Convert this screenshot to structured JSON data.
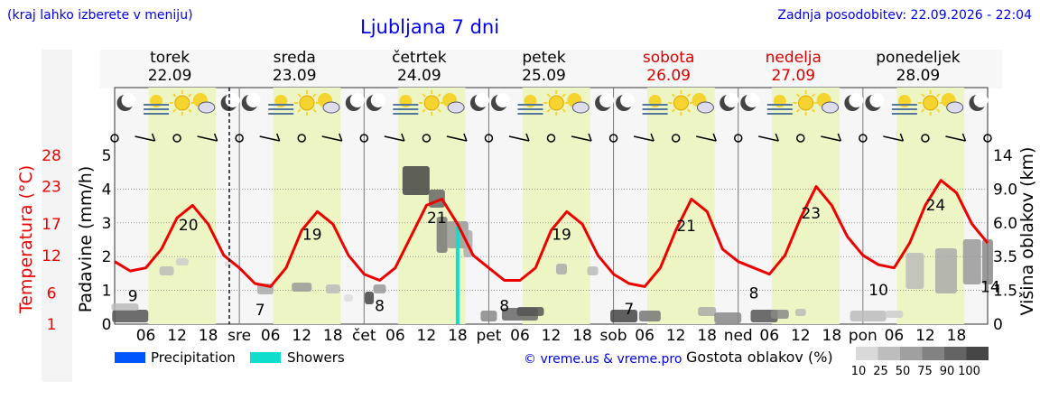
{
  "header": {
    "hint": "(kraj lahko izberete v meniju)",
    "title": "Ljubljana 7 dni",
    "updated": "Zadnja posodobitev: 22.09.2026 - 22:04"
  },
  "days": [
    {
      "name": "torek",
      "date": "22.09",
      "weekend": false,
      "short": "sre"
    },
    {
      "name": "sreda",
      "date": "23.09",
      "weekend": false,
      "short": "čet"
    },
    {
      "name": "četrtek",
      "date": "24.09",
      "weekend": false,
      "short": "pet"
    },
    {
      "name": "petek",
      "date": "25.09",
      "weekend": false,
      "short": "sob"
    },
    {
      "name": "sobota",
      "date": "26.09",
      "weekend": true,
      "short": "ned"
    },
    {
      "name": "nedelja",
      "date": "27.09",
      "weekend": true,
      "short": "pon"
    },
    {
      "name": "ponedeljek",
      "date": "28.09",
      "weekend": false,
      "short": ""
    }
  ],
  "hour_ticks": [
    "06",
    "12",
    "18"
  ],
  "axes": {
    "left_temp_label": "Temperatura (°C)",
    "left_temp_ticks": [
      "28",
      "23",
      "17",
      "12",
      "6",
      "1"
    ],
    "left_precip_label": "Padavine (mm/h)",
    "left_precip_ticks": [
      "5",
      "4",
      "3",
      "2",
      "1",
      "0"
    ],
    "right_label": "Višina oblakov (km)",
    "right_ticks": [
      "14",
      "9.0",
      "6.0",
      "3.5",
      "1.5",
      "0"
    ]
  },
  "temp_labels": [
    {
      "hour": 3.5,
      "text": "9"
    },
    {
      "hour": 14.2,
      "text": "20"
    },
    {
      "hour": 28,
      "text": "7"
    },
    {
      "hour": 38,
      "text": "19"
    },
    {
      "hour": 51,
      "text": "8"
    },
    {
      "hour": 62,
      "text": "21"
    },
    {
      "hour": 75,
      "text": "8"
    },
    {
      "hour": 86,
      "text": "19"
    },
    {
      "hour": 99,
      "text": "7"
    },
    {
      "hour": 110,
      "text": "21"
    },
    {
      "hour": 123,
      "text": "8"
    },
    {
      "hour": 134,
      "text": "23"
    },
    {
      "hour": 147,
      "text": "10"
    },
    {
      "hour": 158,
      "text": "24"
    },
    {
      "hour": 168.5,
      "text": "14"
    }
  ],
  "legend": {
    "precip": "Precipitation",
    "showers": "Showers",
    "credit": "© vreme.us & vreme.pro",
    "cloud_label": "Gostota oblakov (%)",
    "scale": [
      "10",
      "25",
      "50",
      "75",
      "90",
      "100"
    ]
  },
  "colors": {
    "temperature": "#ee0000",
    "precipitation": "#0055ff",
    "showers": "#11ddcc",
    "daytime": "#eef5c4",
    "weekend": "#dd0000"
  },
  "chart_data": {
    "type": "line",
    "title": "Ljubljana 7 dni",
    "x_unit": "hours since 22.09 00:00",
    "ylabel": "Temperatura (°C)",
    "ylim": [
      1,
      28
    ],
    "series": [
      {
        "name": "Temperatura (°C)",
        "x": [
          0,
          3,
          6,
          9,
          12,
          15,
          18,
          21,
          24,
          27,
          30,
          33,
          36,
          39,
          42,
          45,
          48,
          51,
          54,
          57,
          60,
          63,
          66,
          69,
          72,
          75,
          78,
          81,
          84,
          87,
          90,
          93,
          96,
          99,
          102,
          105,
          108,
          111,
          114,
          117,
          120,
          123,
          126,
          129,
          132,
          135,
          138,
          141,
          144,
          147,
          150,
          153,
          156,
          159,
          162,
          165,
          168
        ],
        "values": [
          11,
          9.5,
          10,
          13,
          18,
          20,
          17,
          12,
          10,
          7.5,
          7,
          10,
          16,
          19,
          17,
          12,
          9,
          8,
          10,
          15,
          20,
          21,
          17,
          12,
          10,
          8,
          8,
          10,
          16,
          19,
          17,
          12,
          9,
          7.5,
          7,
          10,
          16,
          21,
          19,
          13,
          11,
          10,
          9,
          12,
          18,
          23,
          20,
          15,
          12,
          10.5,
          10,
          14,
          20,
          24,
          22,
          17,
          14
        ]
      }
    ],
    "precipitation_mm_h": [
      {
        "hour": 66,
        "type": "Showers",
        "value": 2.9
      }
    ]
  }
}
